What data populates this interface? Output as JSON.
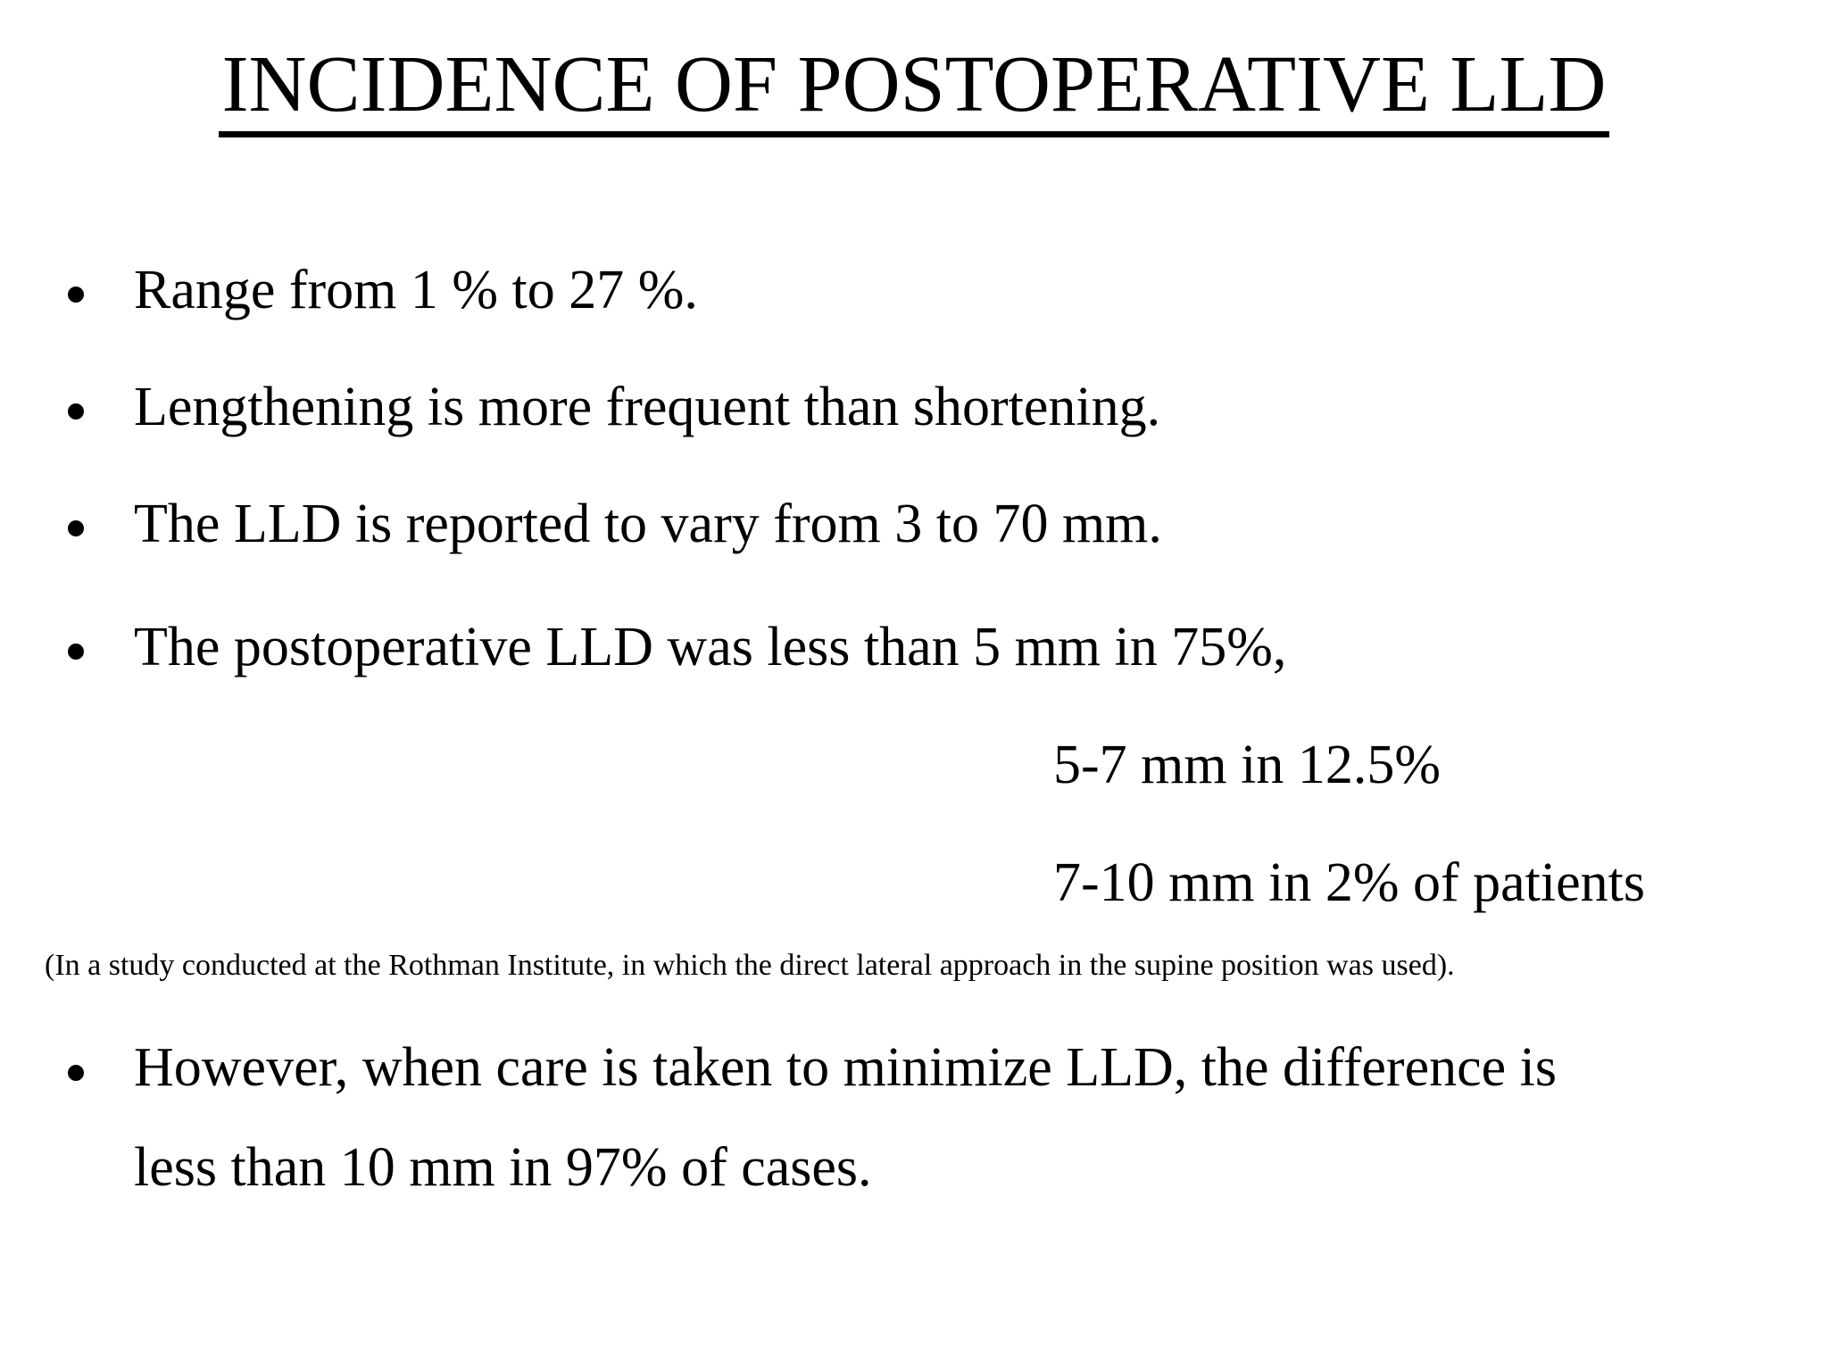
{
  "slide": {
    "title": "INCIDENCE OF POSTOPERATIVE LLD",
    "bullets": [
      "Range from 1 % to 27 %.",
      "Lengthening is more frequent than shortening.",
      "The LLD is reported to vary from 3 to 70 mm.",
      "The postoperative LLD was less than 5 mm in 75%,"
    ],
    "sub_lines": [
      "5-7 mm in 12.5%",
      "7-10 mm in 2% of patients"
    ],
    "note": "(In a study conducted at the Rothman Institute, in which the direct lateral approach in the supine position was used).",
    "final_bullet_lines": [
      "However, when care is taken to minimize LLD, the difference is",
      "less than 10 mm in 97% of cases."
    ],
    "colors": {
      "background": "#ffffff",
      "text": "#000000"
    }
  }
}
